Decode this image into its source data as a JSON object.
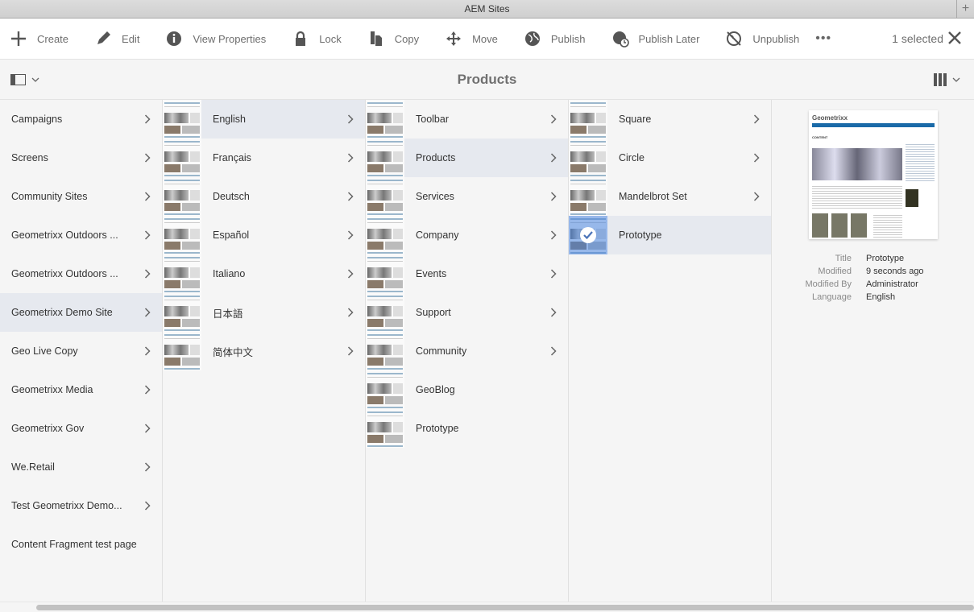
{
  "window": {
    "title": "AEM Sites"
  },
  "toolbar": {
    "actions": [
      {
        "label": "Create",
        "icon": "plus-icon"
      },
      {
        "label": "Edit",
        "icon": "pencil-icon"
      },
      {
        "label": "View Properties",
        "icon": "info-icon"
      },
      {
        "label": "Lock",
        "icon": "lock-icon"
      },
      {
        "label": "Copy",
        "icon": "copy-icon"
      },
      {
        "label": "Move",
        "icon": "move-icon"
      },
      {
        "label": "Publish",
        "icon": "globe-icon"
      },
      {
        "label": "Publish Later",
        "icon": "globe-clock-icon"
      },
      {
        "label": "Unpublish",
        "icon": "globe-off-icon"
      }
    ],
    "more": "•••",
    "selection": "1 selected"
  },
  "header": {
    "title": "Products"
  },
  "columns": [
    {
      "items": [
        {
          "label": "Campaigns",
          "children": true
        },
        {
          "label": "Screens",
          "children": true
        },
        {
          "label": "Community Sites",
          "children": true
        },
        {
          "label": "Geometrixx Outdoors ...",
          "children": true
        },
        {
          "label": "Geometrixx Outdoors ...",
          "children": true
        },
        {
          "label": "Geometrixx Demo Site",
          "children": true,
          "selected": true
        },
        {
          "label": "Geo Live Copy",
          "children": true
        },
        {
          "label": "Geometrixx Media",
          "children": true
        },
        {
          "label": "Geometrixx Gov",
          "children": true
        },
        {
          "label": "We.Retail",
          "children": true
        },
        {
          "label": "Test Geometrixx Demo...",
          "children": true
        },
        {
          "label": "Content Fragment test page",
          "children": false
        }
      ]
    },
    {
      "thumbs": true,
      "items": [
        {
          "label": "English",
          "children": true,
          "selected": true
        },
        {
          "label": "Français",
          "children": true
        },
        {
          "label": "Deutsch",
          "children": true
        },
        {
          "label": "Español",
          "children": true
        },
        {
          "label": "Italiano",
          "children": true
        },
        {
          "label": "日本語",
          "children": true
        },
        {
          "label": "简体中文",
          "children": true
        }
      ]
    },
    {
      "thumbs": true,
      "items": [
        {
          "label": "Toolbar",
          "children": true
        },
        {
          "label": "Products",
          "children": true,
          "selected": true
        },
        {
          "label": "Services",
          "children": true
        },
        {
          "label": "Company",
          "children": true
        },
        {
          "label": "Events",
          "children": true
        },
        {
          "label": "Support",
          "children": true
        },
        {
          "label": "Community",
          "children": true
        },
        {
          "label": "GeoBlog",
          "children": false
        },
        {
          "label": "Prototype",
          "children": false
        }
      ]
    },
    {
      "thumbs": true,
      "items": [
        {
          "label": "Square",
          "children": true
        },
        {
          "label": "Circle",
          "children": true
        },
        {
          "label": "Mandelbrot Set",
          "children": true
        },
        {
          "label": "Prototype",
          "children": false,
          "selected": true,
          "checked": true
        }
      ]
    }
  ],
  "preview": {
    "thumb_logo": "Geometrixx",
    "thumb_heading": "CONTENT",
    "meta": [
      {
        "key": "Title",
        "value": "Prototype"
      },
      {
        "key": "Modified",
        "value": "9 seconds ago"
      },
      {
        "key": "Modified By",
        "value": "Administrator"
      },
      {
        "key": "Language",
        "value": "English"
      }
    ]
  },
  "colors": {
    "selected_row": "#e6e9ef",
    "check_overlay": "#4682dc",
    "nav_blue": "#1a6aa8"
  }
}
